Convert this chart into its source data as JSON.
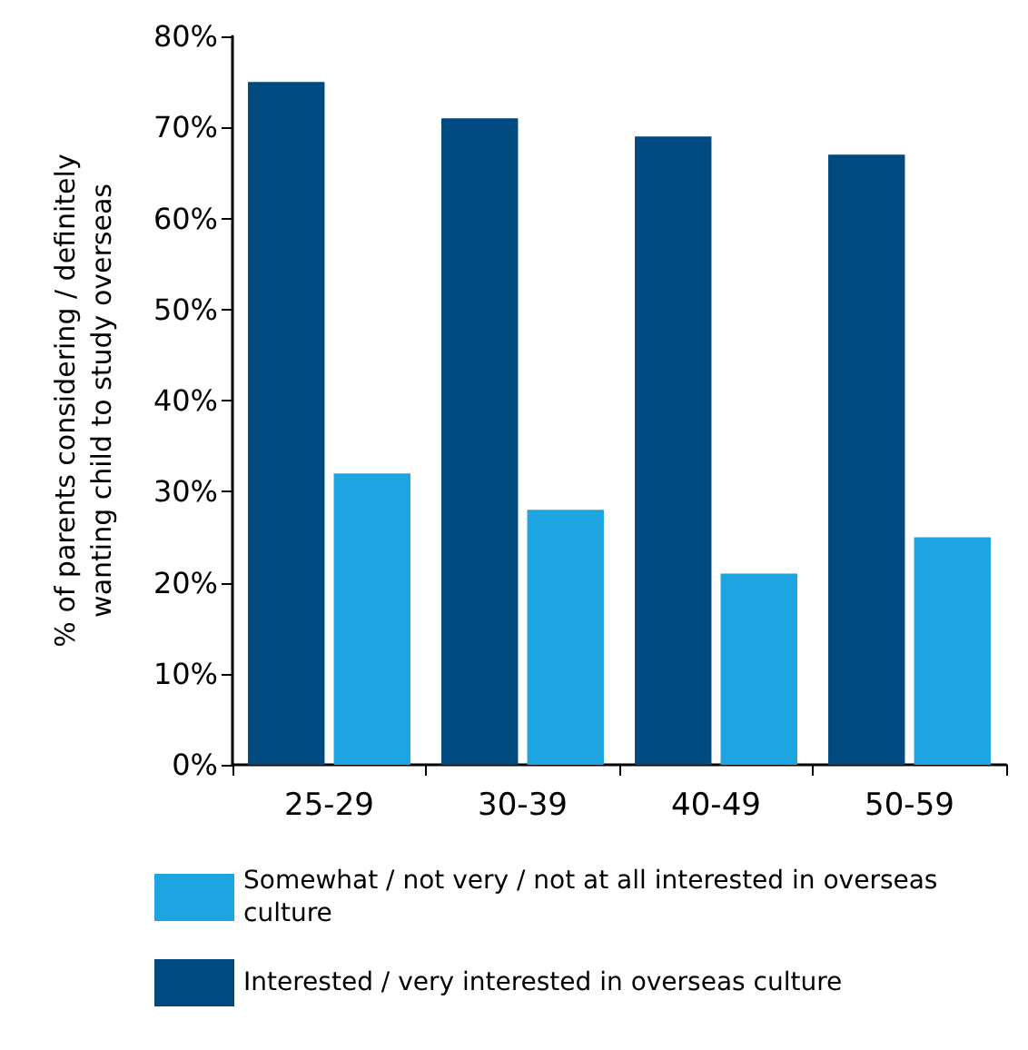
{
  "chart_data": {
    "type": "bar",
    "ylabel": "% of parents considering / definitely wanting child to study overseas",
    "categories": [
      "25-29",
      "30-39",
      "40-49",
      "50-59"
    ],
    "series": [
      {
        "name": "Interested / very interested in overseas culture",
        "color": "#004a80",
        "values": [
          75,
          71,
          69,
          67
        ]
      },
      {
        "name": "Somewhat / not very / not at all interested in overseas culture",
        "color": "#1ea4e0",
        "values": [
          32,
          28,
          21,
          25
        ]
      }
    ],
    "ylim": [
      0,
      80
    ],
    "yticks": [
      {
        "value": 0,
        "label": "0%"
      },
      {
        "value": 10,
        "label": "10%"
      },
      {
        "value": 20,
        "label": "20%"
      },
      {
        "value": 30,
        "label": "30%"
      },
      {
        "value": 40,
        "label": "40%"
      },
      {
        "value": 50,
        "label": "50%"
      },
      {
        "value": 60,
        "label": "60%"
      },
      {
        "value": 70,
        "label": "70%"
      },
      {
        "value": 80,
        "label": "80%"
      }
    ],
    "grid": false,
    "legend": "bottom"
  }
}
